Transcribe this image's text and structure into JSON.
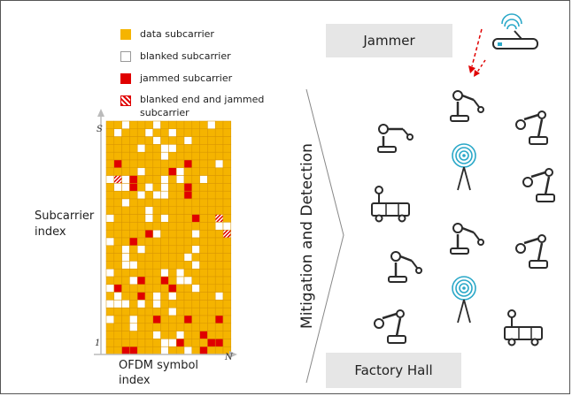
{
  "legend": {
    "data_label": "data subcarrier",
    "blanked_label": "blanked subcarrier",
    "jammed_label": "jammed subcarrier",
    "blanked_jammed_label_line1": "blanked end and jammed",
    "blanked_jammed_label_line2": "subcarrier"
  },
  "grid": {
    "s_label": "S",
    "one_label": "1",
    "n_label": "N",
    "y_axis_label_line1": "Subcarrier",
    "y_axis_label_line2": "index",
    "x_axis_label_line1": "OFDM symbol",
    "x_axis_label_line2": "index"
  },
  "vertical_label": "Mitigation and Detection",
  "jammer_label": "Jammer",
  "factory_label": "Factory Hall",
  "colors": {
    "data": "#f5b400",
    "jammed": "#e00000",
    "blanked": "#ffffff",
    "icon": "#2b2b2b",
    "antenna": "#2aa8c8",
    "box": "#e6e6e6"
  },
  "icons": [
    "robot-arm-icon",
    "agv-cart-icon",
    "wireless-antenna-icon",
    "router-icon"
  ]
}
